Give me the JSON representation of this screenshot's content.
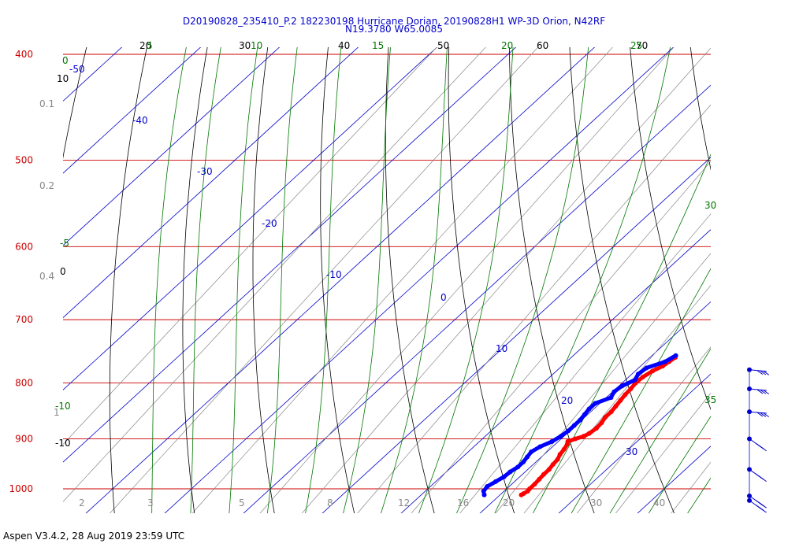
{
  "header": {
    "title": "D20190828_235410_P.2 182230198 Hurricane Dorian, 20190828H1 WP-3D Orion, N42RF",
    "subtitle": "N19.3780 W65.0085"
  },
  "footer": {
    "text": "Aspen V3.4.2, 28 Aug 2019  23:59 UTC"
  },
  "colors": {
    "isobar": "#cc0000",
    "isotherm": "#0000cc",
    "dry_adiabat": "#000000",
    "moist_adiabat": "#007700",
    "mixing_ratio": "#888888",
    "temperature": "#ff0000",
    "dewpoint": "#0000ff"
  },
  "chart_data": {
    "type": "skew-t",
    "ylabel": "",
    "xlabel": "",
    "pressure_range": [
      1050,
      400
    ],
    "temperature_range": [
      -10,
      45
    ],
    "grid": true,
    "isobars": [
      400,
      500,
      600,
      700,
      800,
      900,
      1000
    ],
    "isotherms": [
      -50,
      -40,
      -30,
      -20,
      -10,
      0,
      10,
      20,
      30
    ],
    "dry_adiabats": [
      {
        "label": "10",
        "value": 10
      },
      {
        "label": "0",
        "value": 0
      },
      {
        "label": "-10",
        "value": -10
      },
      {
        "label": "20",
        "value": 20
      },
      {
        "label": "30",
        "value": 30
      },
      {
        "label": "40",
        "value": 40
      },
      {
        "label": "50",
        "value": 50
      },
      {
        "label": "60",
        "value": 60
      },
      {
        "label": "70",
        "value": 70
      }
    ],
    "moist_adiabats": [
      {
        "label": "0",
        "value": 0
      },
      {
        "label": "-5",
        "value": -5
      },
      {
        "label": "-10",
        "value": -10
      },
      {
        "label": "5",
        "value": 5
      },
      {
        "label": "10",
        "value": 10
      },
      {
        "label": "15",
        "value": 15
      },
      {
        "label": "20",
        "value": 20
      },
      {
        "label": "25",
        "value": 25
      },
      {
        "label": "30",
        "value": 30
      },
      {
        "label": "35",
        "value": 35
      }
    ],
    "mixing_ratios": [
      {
        "label": "0.1",
        "value": 0.1
      },
      {
        "label": "0.2",
        "value": 0.2
      },
      {
        "label": "0.4",
        "value": 0.4
      },
      {
        "label": "1",
        "value": 1
      },
      {
        "label": "2",
        "value": 2
      },
      {
        "label": "3",
        "value": 3
      },
      {
        "label": "5",
        "value": 5
      },
      {
        "label": "8",
        "value": 8
      },
      {
        "label": "12",
        "value": 12
      },
      {
        "label": "16",
        "value": 16
      },
      {
        "label": "20",
        "value": 20
      },
      {
        "label": "30",
        "value": 30
      },
      {
        "label": "40",
        "value": 40
      }
    ],
    "series": [
      {
        "pressure": [
          758,
          765,
          772,
          780,
          790,
          800,
          810,
          820,
          830,
          840,
          850,
          860,
          870,
          880,
          890,
          895,
          900,
          905,
          910,
          920,
          930,
          940,
          950,
          960,
          970,
          980,
          990,
          1000,
          1005,
          1010,
          1013
        ],
        "values": [
          23.2,
          23.0,
          22.8,
          22.2,
          21.8,
          21.7,
          21.9,
          22.0,
          22.2,
          22.4,
          22.6,
          22.6,
          22.9,
          23.0,
          22.8,
          22.5,
          21.8,
          21.2,
          21.5,
          21.8,
          22.0,
          22.4,
          22.5,
          22.7,
          22.7,
          22.8,
          22.9,
          22.9,
          23.0,
          22.8,
          22.7
        ]
      },
      {
        "pressure": [
          755,
          765,
          775,
          785,
          795,
          805,
          815,
          825,
          835,
          845,
          855,
          865,
          875,
          885,
          895,
          905,
          915,
          925,
          935,
          945,
          955,
          965,
          975,
          985,
          995,
          1005,
          1013
        ],
        "values": [
          23.0,
          22.5,
          21.0,
          20.8,
          21.2,
          20.4,
          20.2,
          20.6,
          19.4,
          19.4,
          19.6,
          19.8,
          19.8,
          19.8,
          19.6,
          19.2,
          18.4,
          18.0,
          18.2,
          18.4,
          18.4,
          18.1,
          18.0,
          17.6,
          17.2,
          17.4,
          18.0
        ]
      }
    ],
    "wind_barbs_pressure": [
      778,
      810,
      850,
      900,
      960,
      1015,
      1025
    ]
  }
}
